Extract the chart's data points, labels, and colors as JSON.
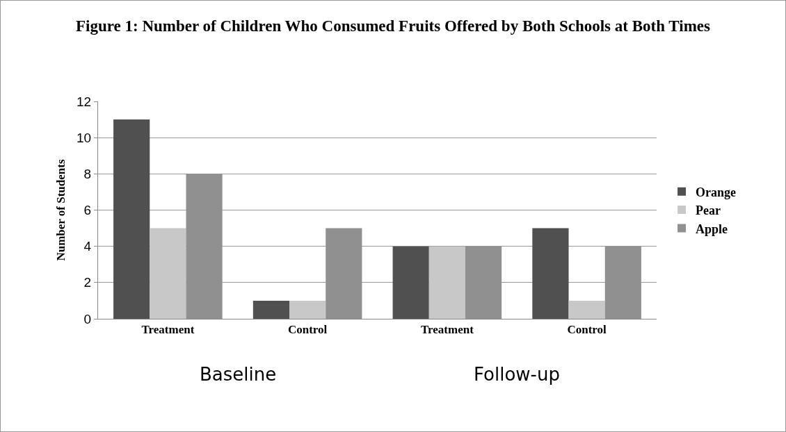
{
  "chart_data": {
    "type": "bar",
    "title": "Figure 1: Number of Children Who Consumed Fruits Offered by Both Schools at Both Times",
    "ylabel": "Number of Students",
    "categories": [
      "Treatment",
      "Control",
      "Treatment",
      "Control"
    ],
    "series": [
      {
        "name": "Orange",
        "color": "#505050",
        "values": [
          11,
          1,
          4,
          5
        ]
      },
      {
        "name": "Pear",
        "color": "#c8c8c8",
        "values": [
          5,
          1,
          4,
          1
        ]
      },
      {
        "name": "Apple",
        "color": "#909090",
        "values": [
          8,
          5,
          4,
          4
        ]
      }
    ],
    "annotations": [
      "Baseline",
      "Follow-up"
    ],
    "ylim": [
      0,
      12
    ],
    "yticks": [
      0,
      2,
      4,
      6,
      8,
      10,
      12
    ],
    "grid": "y",
    "legend": "right"
  }
}
